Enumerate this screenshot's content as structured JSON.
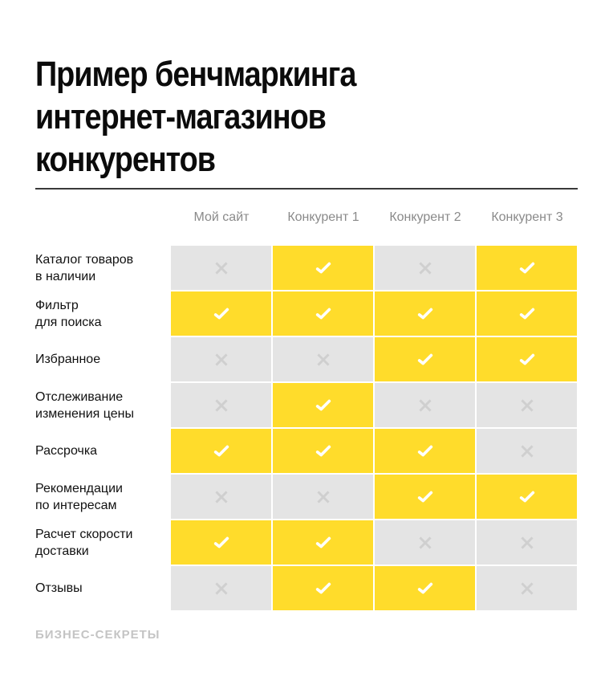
{
  "title": {
    "lines": [
      "Пример бенчмаркинга",
      "интернет-магазинов",
      "конкурентов"
    ]
  },
  "colors": {
    "yes": "#ffdc2b",
    "no": "#e4e4e4",
    "header_text": "#8a8a8a",
    "rule": "#3a3a3a"
  },
  "columns": [
    "Мой сайт",
    "Конкурент 1",
    "Конкурент 2",
    "Конкурент 3"
  ],
  "rows": [
    {
      "label": "Каталог товаров\nв наличии",
      "values": [
        false,
        true,
        false,
        true
      ]
    },
    {
      "label": "Фильтр\nдля поиска",
      "values": [
        true,
        true,
        true,
        true
      ]
    },
    {
      "label": "Избранное",
      "values": [
        false,
        false,
        true,
        true
      ]
    },
    {
      "label": "Отслеживание\nизменения цены",
      "values": [
        false,
        true,
        false,
        false
      ]
    },
    {
      "label": "Рассрочка",
      "values": [
        true,
        true,
        true,
        false
      ]
    },
    {
      "label": "Рекомендации\nпо интересам",
      "values": [
        false,
        false,
        true,
        true
      ]
    },
    {
      "label": "Расчет скорости\nдоставки",
      "values": [
        true,
        true,
        false,
        false
      ]
    },
    {
      "label": "Отзывы",
      "values": [
        false,
        true,
        true,
        false
      ]
    }
  ],
  "icons": {
    "yes": "check-icon",
    "no": "cross-icon"
  },
  "brand": "БИЗНЕС-СЕКРЕТЫ"
}
